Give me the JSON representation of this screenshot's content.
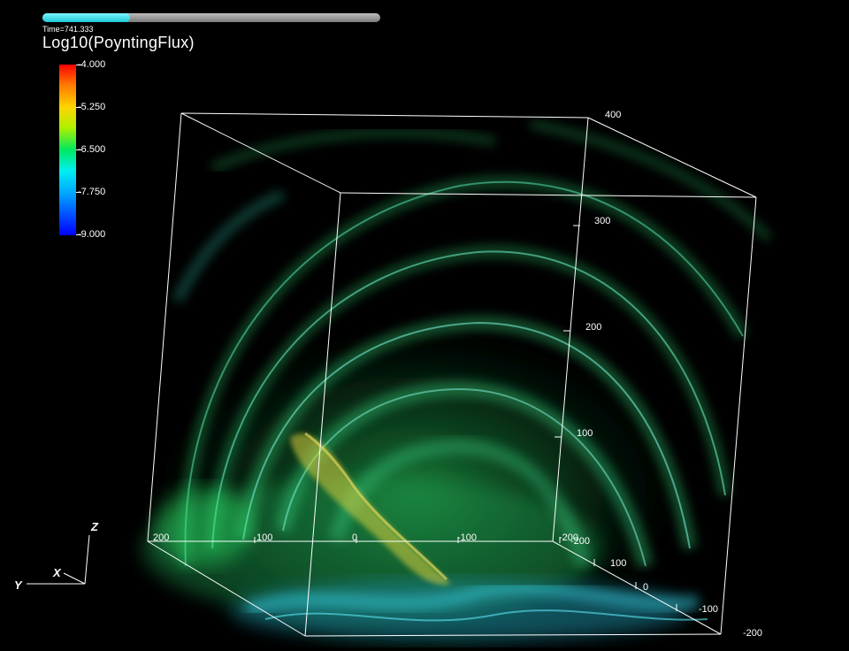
{
  "time_slider": {
    "progress": 0.26,
    "label": "Time=741.333"
  },
  "variable_title": "Log10(PoyntingFlux)",
  "colorbar": {
    "labels": [
      "-4.000",
      "-5.250",
      "-6.500",
      "-7.750",
      "-9.000"
    ]
  },
  "axes": {
    "z_ticks": [
      "400",
      "300",
      "200",
      "100"
    ],
    "x_ticks": [
      "200",
      "100",
      "0",
      "-100",
      "-200"
    ],
    "y_ticks": [
      "-200",
      "100",
      "0",
      "-100",
      "-200"
    ]
  },
  "triad": {
    "x": "X",
    "y": "Y",
    "z": "Z"
  },
  "colors": {
    "slider_fill": "#1cc9d6",
    "volume_green": "#2ee86a",
    "volume_cyan": "#34d9e0"
  }
}
